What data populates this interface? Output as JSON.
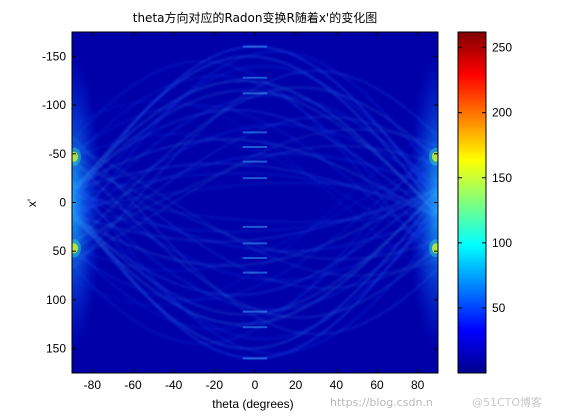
{
  "chart_data": {
    "type": "heatmap",
    "title": "theta方向对应的Radon变换R随着x'的变化图",
    "xlabel": "theta (degrees)",
    "ylabel": "x'",
    "xlim": [
      -90,
      90
    ],
    "ylim": [
      -175,
      175
    ],
    "y_reversed": true,
    "x_ticks": [
      -80,
      -60,
      -40,
      -20,
      0,
      20,
      40,
      60,
      80
    ],
    "y_ticks": [
      -150,
      -100,
      -50,
      0,
      50,
      100,
      150
    ],
    "colormap": "jet",
    "colorbar": {
      "range": [
        0,
        262
      ],
      "ticks": [
        50,
        100,
        150,
        200,
        250
      ]
    },
    "grid": false
  },
  "watermark": {
    "url_text": "https://blog.csdn.n",
    "brand_text": "@51CTO博客"
  },
  "colors": {
    "background": "#ffffff",
    "heatmap_base": "#0000a8",
    "axis": "#000000",
    "watermark_url": "#b8b8b8",
    "watermark_brand": "#c8c8c8"
  }
}
